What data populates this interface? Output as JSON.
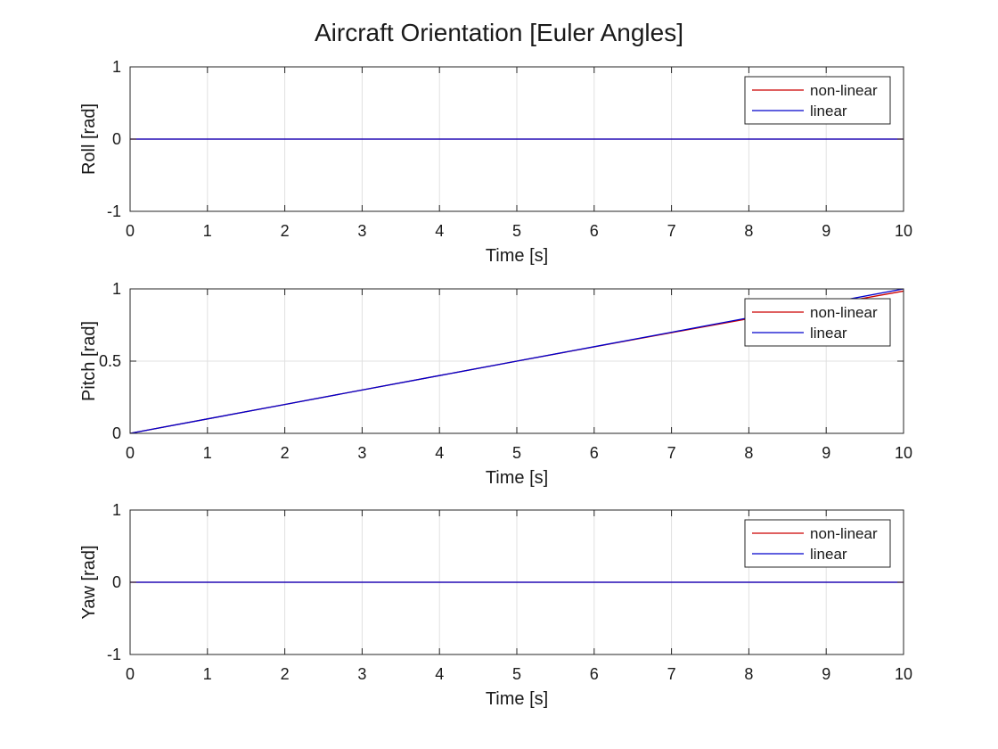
{
  "chart_data": {
    "title": "Aircraft Orientation [Euler Angles]",
    "legend_placement": "top-right",
    "grid": true,
    "colors": {
      "non_linear": "#cc0000",
      "linear": "#0000cc",
      "grid": "#e0e0e0",
      "axes": "#262626"
    },
    "panels": [
      {
        "type": "line",
        "ylabel": "Roll [rad]",
        "xlabel": "Time [s]",
        "xlim": [
          0,
          10
        ],
        "ylim": [
          -1,
          1
        ],
        "xticks": [
          0,
          1,
          2,
          3,
          4,
          5,
          6,
          7,
          8,
          9,
          10
        ],
        "xtick_labels": [
          "0",
          "1",
          "2",
          "3",
          "4",
          "5",
          "6",
          "7",
          "8",
          "9",
          "10"
        ],
        "yticks": [
          -1,
          0,
          1
        ],
        "ytick_labels": [
          "-1",
          "0",
          "1"
        ],
        "series": [
          {
            "name": "non-linear",
            "x": [
              0,
              10
            ],
            "y": [
              0,
              0
            ]
          },
          {
            "name": "linear",
            "x": [
              0,
              10
            ],
            "y": [
              0,
              0
            ]
          }
        ]
      },
      {
        "type": "line",
        "ylabel": "Pitch [rad]",
        "xlabel": "Time [s]",
        "xlim": [
          0,
          10
        ],
        "ylim": [
          0,
          1
        ],
        "xticks": [
          0,
          1,
          2,
          3,
          4,
          5,
          6,
          7,
          8,
          9,
          10
        ],
        "xtick_labels": [
          "0",
          "1",
          "2",
          "3",
          "4",
          "5",
          "6",
          "7",
          "8",
          "9",
          "10"
        ],
        "yticks": [
          0,
          0.5,
          1
        ],
        "ytick_labels": [
          "0",
          "0.5",
          "1"
        ],
        "series": [
          {
            "name": "non-linear",
            "x": [
              0,
              1,
              2,
              3,
              4,
              5,
              6,
              7,
              8,
              9,
              10
            ],
            "y": [
              0,
              0.1,
              0.2,
              0.3,
              0.4,
              0.5,
              0.599,
              0.697,
              0.794,
              0.889,
              0.985
            ]
          },
          {
            "name": "linear",
            "x": [
              0,
              1,
              2,
              3,
              4,
              5,
              6,
              7,
              8,
              9,
              10
            ],
            "y": [
              0,
              0.1,
              0.2,
              0.3,
              0.4,
              0.5,
              0.6,
              0.7,
              0.8,
              0.9,
              1.0
            ]
          }
        ]
      },
      {
        "type": "line",
        "ylabel": "Yaw [rad]",
        "xlabel": "Time [s]",
        "xlim": [
          0,
          10
        ],
        "ylim": [
          -1,
          1
        ],
        "xticks": [
          0,
          1,
          2,
          3,
          4,
          5,
          6,
          7,
          8,
          9,
          10
        ],
        "xtick_labels": [
          "0",
          "1",
          "2",
          "3",
          "4",
          "5",
          "6",
          "7",
          "8",
          "9",
          "10"
        ],
        "yticks": [
          -1,
          0,
          1
        ],
        "ytick_labels": [
          "-1",
          "0",
          "1"
        ],
        "series": [
          {
            "name": "non-linear",
            "x": [
              0,
              10
            ],
            "y": [
              0,
              0
            ]
          },
          {
            "name": "linear",
            "x": [
              0,
              10
            ],
            "y": [
              0,
              0
            ]
          }
        ]
      }
    ]
  }
}
